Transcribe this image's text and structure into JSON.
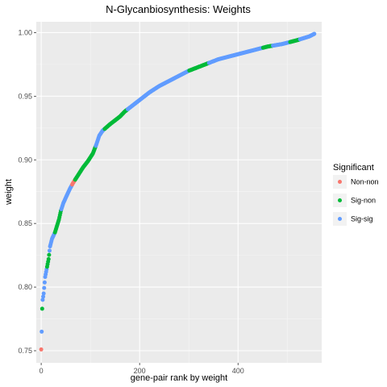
{
  "chart_data": {
    "type": "scatter",
    "title": "N-Glycanbiosynthesis: Weights",
    "xlabel": "gene-pair rank by weight",
    "ylabel": "weight",
    "xlim": [
      -10,
      570
    ],
    "ylim": [
      0.7405,
      1.0085
    ],
    "x_ticks": [
      0,
      200,
      400
    ],
    "y_ticks": [
      0.75,
      0.8,
      0.85,
      0.9,
      0.95,
      1.0
    ],
    "y_tick_labels": [
      "0.75",
      "0.80",
      "0.85",
      "0.90",
      "0.95",
      "1.00"
    ],
    "grid": true,
    "legend": {
      "title": "Significant",
      "position": "right",
      "entries": [
        {
          "label": "Non-non",
          "color": "#F8766D"
        },
        {
          "label": "Sig-non",
          "color": "#00BA38"
        },
        {
          "label": "Sig-sig",
          "color": "#619CFF"
        }
      ]
    },
    "curve_knots": [
      [
        0,
        0.751
      ],
      [
        1,
        0.765
      ],
      [
        2,
        0.783
      ],
      [
        3,
        0.79
      ],
      [
        5,
        0.795
      ],
      [
        8,
        0.808
      ],
      [
        12,
        0.816
      ],
      [
        15,
        0.822
      ],
      [
        18,
        0.832
      ],
      [
        22,
        0.838
      ],
      [
        28,
        0.843
      ],
      [
        32,
        0.848
      ],
      [
        36,
        0.853
      ],
      [
        40,
        0.86
      ],
      [
        45,
        0.866
      ],
      [
        52,
        0.872
      ],
      [
        58,
        0.877
      ],
      [
        65,
        0.882
      ],
      [
        75,
        0.888
      ],
      [
        85,
        0.894
      ],
      [
        95,
        0.899
      ],
      [
        105,
        0.905
      ],
      [
        112,
        0.912
      ],
      [
        118,
        0.919
      ],
      [
        125,
        0.923
      ],
      [
        140,
        0.928
      ],
      [
        150,
        0.931
      ],
      [
        160,
        0.934
      ],
      [
        170,
        0.938
      ],
      [
        180,
        0.941
      ],
      [
        200,
        0.947
      ],
      [
        220,
        0.953
      ],
      [
        240,
        0.958
      ],
      [
        260,
        0.962
      ],
      [
        280,
        0.966
      ],
      [
        300,
        0.97
      ],
      [
        320,
        0.973
      ],
      [
        340,
        0.976
      ],
      [
        360,
        0.979
      ],
      [
        380,
        0.981
      ],
      [
        400,
        0.983
      ],
      [
        430,
        0.986
      ],
      [
        460,
        0.989
      ],
      [
        490,
        0.991
      ],
      [
        520,
        0.994
      ],
      [
        545,
        0.997
      ],
      [
        555,
        0.999
      ]
    ],
    "color_segments": [
      {
        "from": 0,
        "to": 0,
        "series": "Non-non"
      },
      {
        "from": 1,
        "to": 1,
        "series": "Sig-sig"
      },
      {
        "from": 2,
        "to": 2,
        "series": "Sig-non"
      },
      {
        "from": 3,
        "to": 11,
        "series": "Sig-sig"
      },
      {
        "from": 12,
        "to": 16,
        "series": "Sig-non"
      },
      {
        "from": 17,
        "to": 27,
        "series": "Sig-sig"
      },
      {
        "from": 28,
        "to": 40,
        "series": "Sig-non"
      },
      {
        "from": 41,
        "to": 62,
        "series": "Sig-sig"
      },
      {
        "from": 63,
        "to": 68,
        "series": "Non-non"
      },
      {
        "from": 69,
        "to": 110,
        "series": "Sig-non"
      },
      {
        "from": 111,
        "to": 128,
        "series": "Sig-sig"
      },
      {
        "from": 129,
        "to": 175,
        "series": "Sig-non"
      },
      {
        "from": 176,
        "to": 300,
        "series": "Sig-sig"
      },
      {
        "from": 301,
        "to": 340,
        "series": "Sig-non"
      },
      {
        "from": 341,
        "to": 450,
        "series": "Sig-sig"
      },
      {
        "from": 451,
        "to": 470,
        "series": "Sig-non"
      },
      {
        "from": 471,
        "to": 505,
        "series": "Sig-sig"
      },
      {
        "from": 506,
        "to": 525,
        "series": "Sig-non"
      },
      {
        "from": 526,
        "to": 555,
        "series": "Sig-sig"
      }
    ]
  }
}
